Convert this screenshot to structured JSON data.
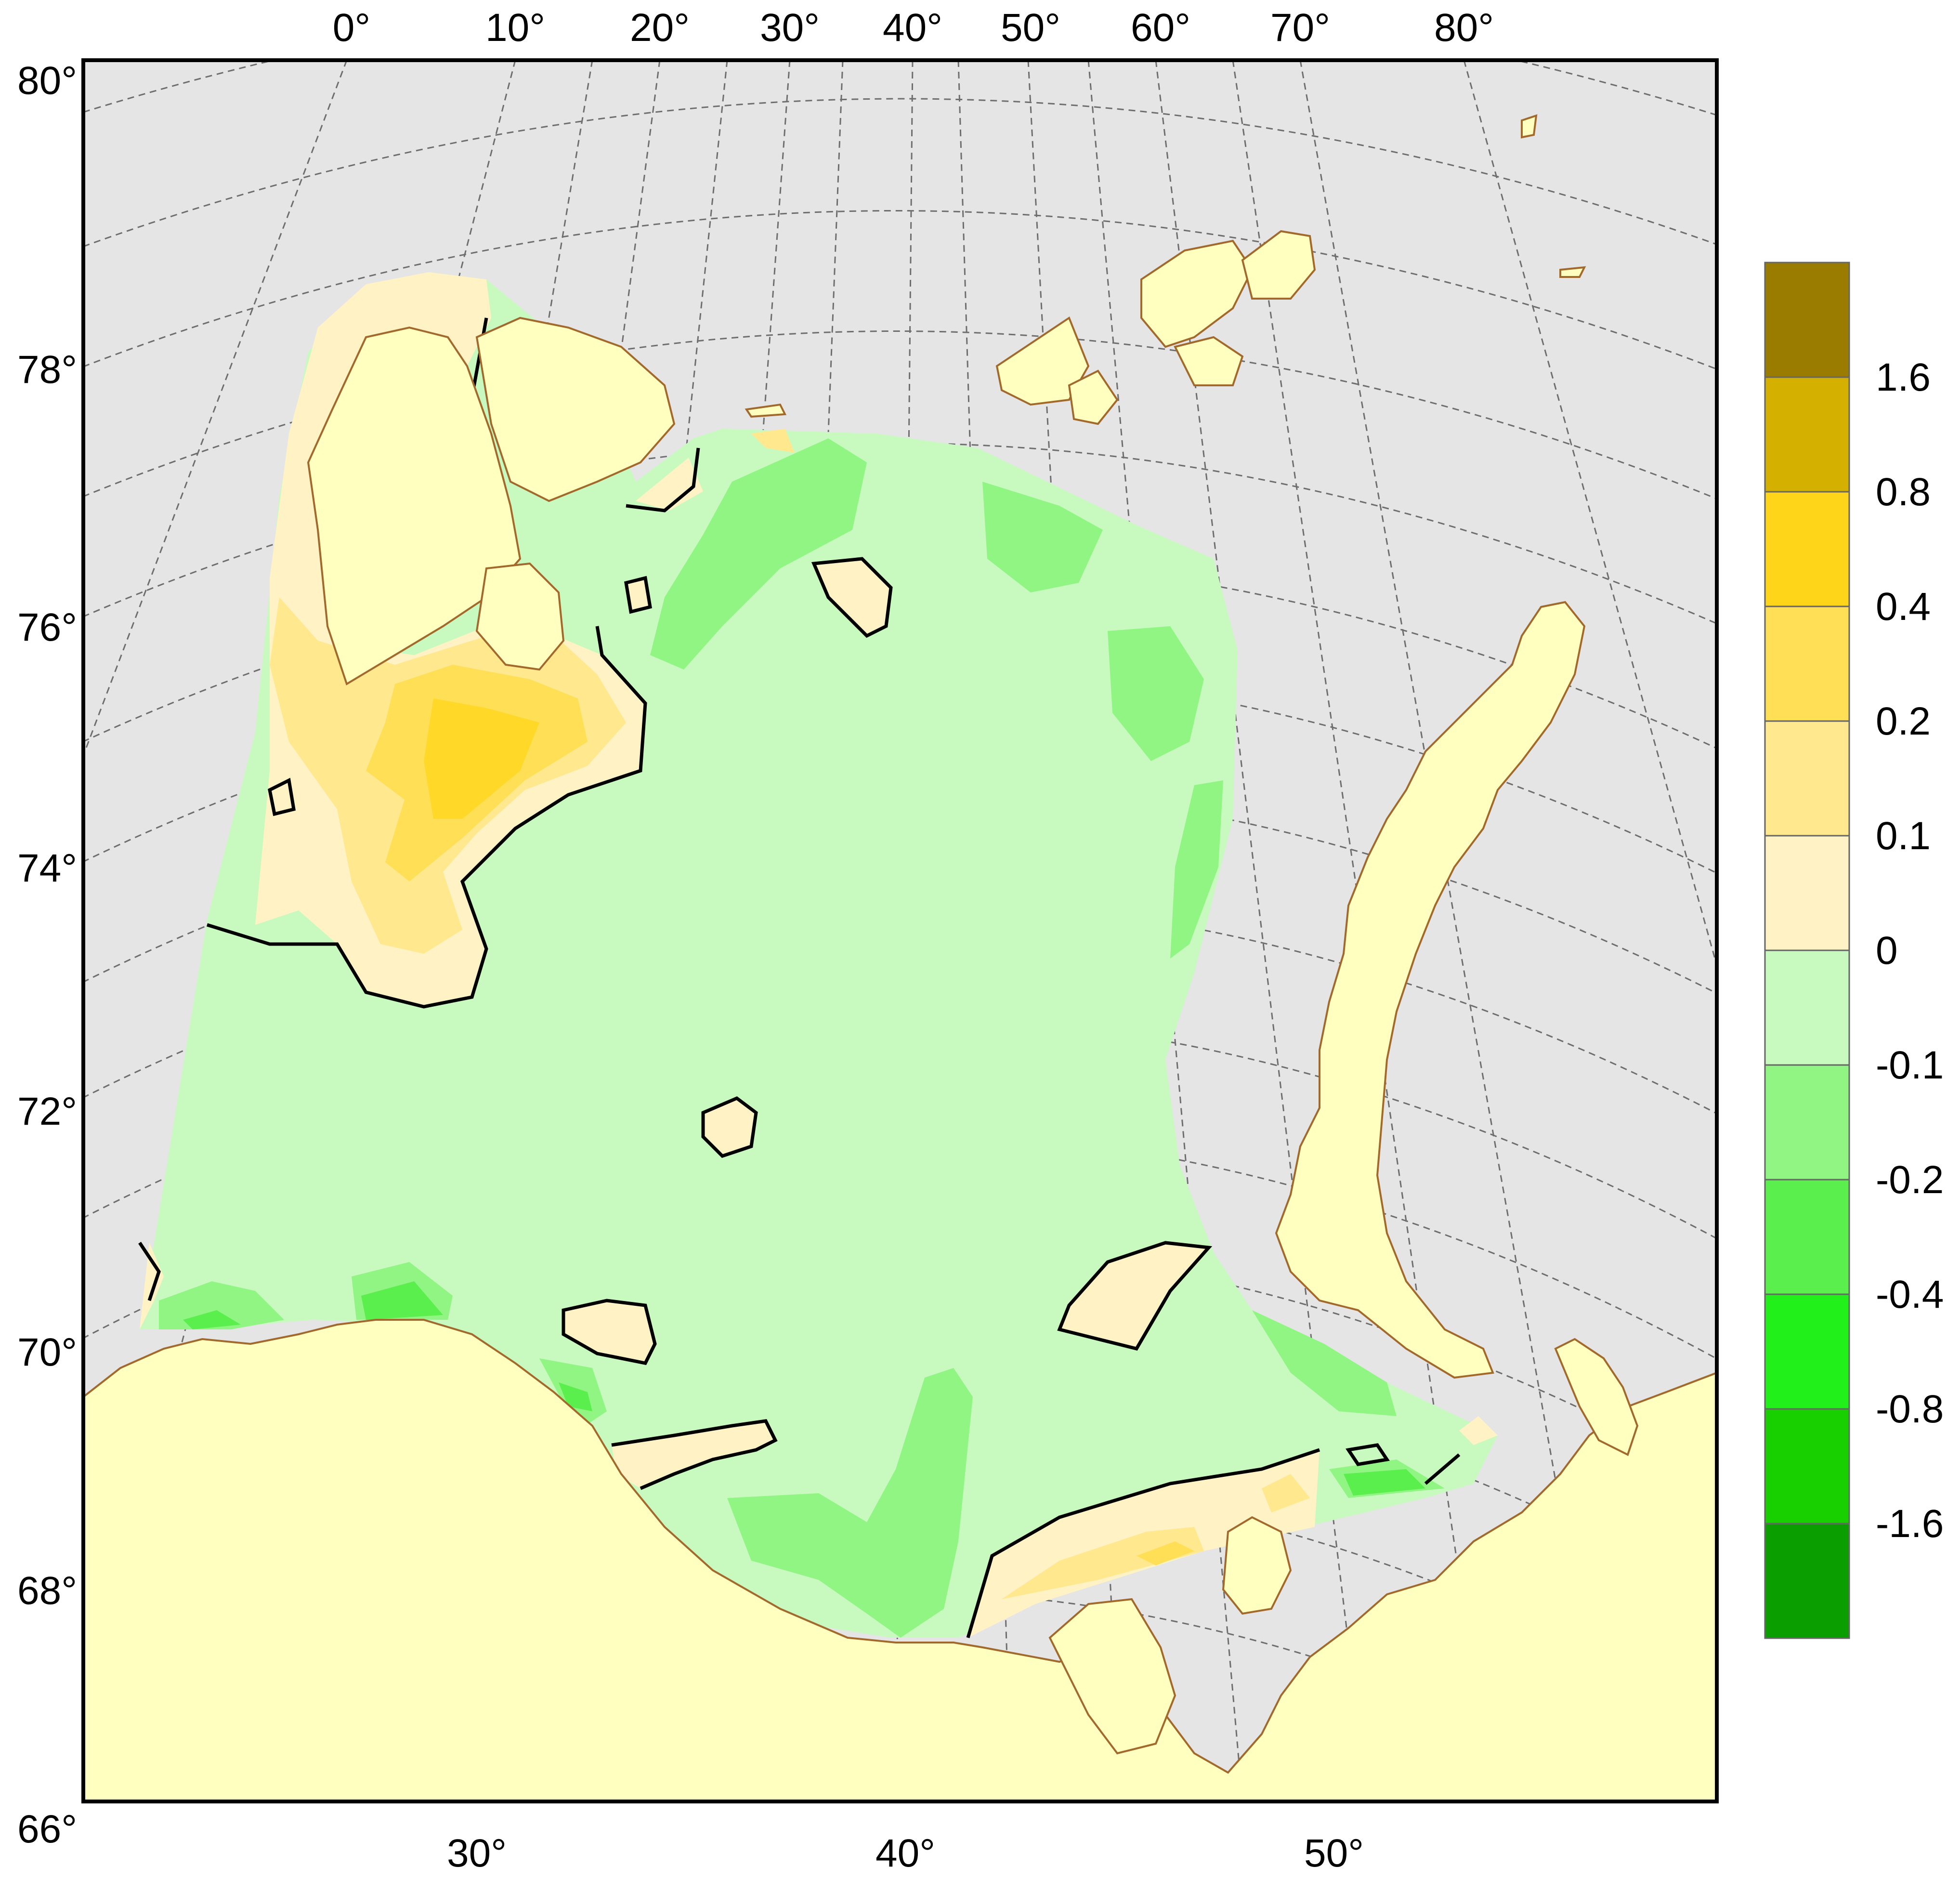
{
  "map": {
    "top_lon_labels": [
      "0°",
      "10°",
      "20°",
      "30°",
      "40°",
      "50°",
      "60°",
      "70°",
      "80°"
    ],
    "bottom_lon_labels": [
      "30°",
      "40°",
      "50°"
    ],
    "left_lat_labels": [
      "80°",
      "78°",
      "76°",
      "74°",
      "72°",
      "70°",
      "68°",
      "66°"
    ],
    "colors": {
      "background": "#e5e5e5",
      "land": "#ffffc0",
      "coast": "#a2692c",
      "grid": "#6e6e6e"
    }
  },
  "colorbar": {
    "labels": [
      "1.6",
      "0.8",
      "0.4",
      "0.2",
      "0.1",
      "0",
      "-0.1",
      "-0.2",
      "-0.4",
      "-0.8",
      "-1.6"
    ],
    "colors": [
      "#9a7d00",
      "#d4b000",
      "#ffd51a",
      "#ffdf55",
      "#ffe88e",
      "#fff2c4",
      "#c8fac0",
      "#90f582",
      "#5aef4c",
      "#22f01a",
      "#18d000",
      "#0b9e00"
    ]
  }
}
